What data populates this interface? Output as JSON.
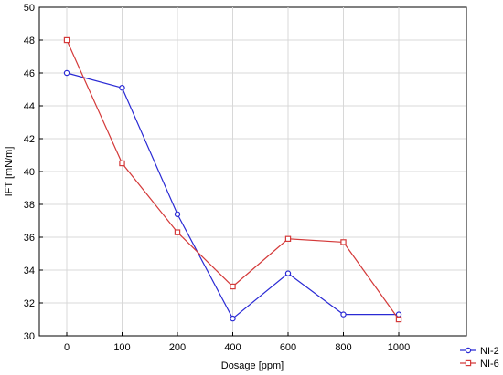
{
  "chart_data": {
    "type": "line",
    "x": [
      0,
      100,
      200,
      400,
      600,
      800,
      1000
    ],
    "categories": [
      "0",
      "100",
      "200",
      "400",
      "600",
      "800",
      "1000"
    ],
    "series": [
      {
        "name": "NI-2",
        "values": [
          46.0,
          45.1,
          37.4,
          31.05,
          33.8,
          31.3,
          31.3
        ],
        "color": "#2a2ad4",
        "marker": "circle"
      },
      {
        "name": "NI-6",
        "values": [
          48.0,
          40.5,
          36.3,
          33.0,
          35.9,
          35.7,
          31.0
        ],
        "color": "#d43a3a",
        "marker": "square"
      }
    ],
    "xlabel": "Dosage [ppm]",
    "ylabel": "IFT [mN/m]",
    "ylim": [
      30,
      50
    ],
    "yticks": [
      30,
      32,
      34,
      36,
      38,
      40,
      42,
      44,
      46,
      48,
      50
    ],
    "grid": true,
    "legend_position": "bottom-right",
    "title": ""
  }
}
